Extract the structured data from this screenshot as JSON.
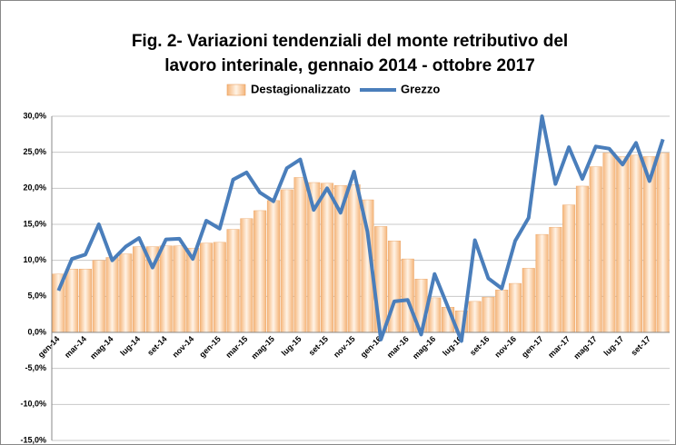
{
  "chart_data": {
    "type": "bar-line",
    "title": [
      "Fig. 2- Variazioni tendenziali del monte retributivo del",
      "lavoro interinale, gennaio 2014 - ottobre 2017"
    ],
    "categories": [
      "gen-14",
      null,
      "mar-14",
      null,
      "mag-14",
      null,
      "lug-14",
      null,
      "set-14",
      null,
      "nov-14",
      null,
      "gen-15",
      null,
      "mar-15",
      null,
      "mag-15",
      null,
      "lug-15",
      null,
      "set-15",
      null,
      "nov-15",
      null,
      "gen-16",
      null,
      "mar-16",
      null,
      "mag-16",
      null,
      "lug-16",
      null,
      "set-16",
      null,
      "nov-16",
      null,
      "gen-17",
      null,
      "mar-17",
      null,
      "mag-17",
      null,
      "lug-17",
      null,
      "set-17",
      null
    ],
    "series": [
      {
        "name": "Destagionalizzato",
        "type": "bar",
        "color": "#f5b57a",
        "values": [
          8.1,
          8.8,
          8.8,
          10.0,
          10.4,
          10.9,
          11.9,
          11.9,
          12.0,
          12.0,
          11.7,
          12.4,
          12.5,
          14.3,
          15.8,
          16.9,
          18.3,
          19.8,
          21.5,
          20.8,
          20.7,
          20.4,
          20.5,
          18.4,
          14.7,
          12.7,
          10.2,
          7.4,
          4.8,
          3.5,
          3.0,
          4.3,
          4.9,
          5.9,
          6.8,
          8.9,
          13.6,
          14.6,
          17.7,
          20.3,
          23.0,
          24.9,
          24.4,
          24.6,
          24.4,
          24.9
        ]
      },
      {
        "name": "Grezzo",
        "type": "line",
        "color": "#4a7ebb",
        "values": [
          5.8,
          10.2,
          10.8,
          15.0,
          10.0,
          11.9,
          13.1,
          9.0,
          12.9,
          13.0,
          10.2,
          15.5,
          14.4,
          21.2,
          22.2,
          19.4,
          18.2,
          22.8,
          24.0,
          17.0,
          20.0,
          16.6,
          22.3,
          14.0,
          -1.0,
          4.3,
          4.5,
          -0.3,
          8.1,
          3.5,
          -1.2,
          12.8,
          7.5,
          6.1,
          12.7,
          15.9,
          30.0,
          20.6,
          25.7,
          21.3,
          25.8,
          25.5,
          23.3,
          26.3,
          21.0,
          26.8
        ]
      }
    ],
    "ylim": [
      -15,
      30
    ],
    "yticks": [
      {
        "value": -15,
        "label": "-15,0%"
      },
      {
        "value": -10,
        "label": "-10,0%"
      },
      {
        "value": -5,
        "label": "-5,0%"
      },
      {
        "value": 0,
        "label": "0,0%"
      },
      {
        "value": 5,
        "label": "5,0%"
      },
      {
        "value": 10,
        "label": "10,0%"
      },
      {
        "value": 15,
        "label": "15,0%"
      },
      {
        "value": 20,
        "label": "20,0%"
      },
      {
        "value": 25,
        "label": "25,0%"
      },
      {
        "value": 30,
        "label": "30,0%"
      }
    ],
    "grid": true,
    "legend": "top"
  }
}
